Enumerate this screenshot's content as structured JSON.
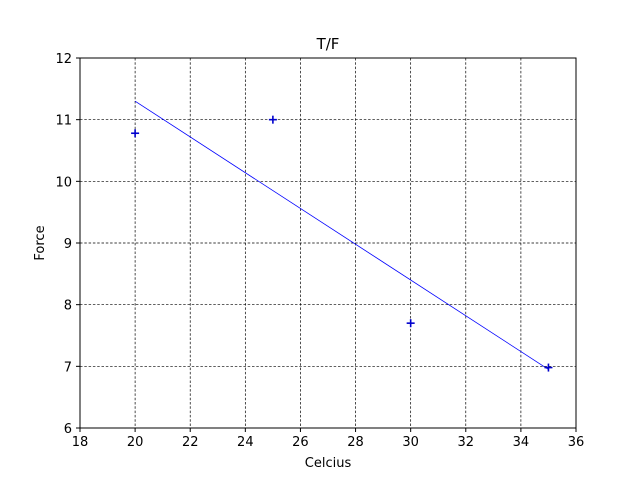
{
  "chart_data": {
    "type": "scatter",
    "title": "T/F",
    "xlabel": "Celcius",
    "ylabel": "Force",
    "xlim": [
      18,
      36
    ],
    "ylim": [
      6,
      12
    ],
    "xticks": [
      18,
      20,
      22,
      24,
      26,
      28,
      30,
      32,
      34,
      36
    ],
    "yticks": [
      6,
      7,
      8,
      9,
      10,
      11,
      12
    ],
    "grid": true,
    "grid_style": "dashed",
    "series": [
      {
        "kind": "scatter",
        "marker": "plus",
        "color": "#0000cc",
        "x": [
          20,
          25,
          30,
          35
        ],
        "y": [
          10.78,
          11.0,
          7.7,
          6.98
        ]
      },
      {
        "kind": "line",
        "color": "#0000ff",
        "x": [
          20,
          35
        ],
        "y": [
          11.3,
          6.95
        ]
      }
    ]
  }
}
